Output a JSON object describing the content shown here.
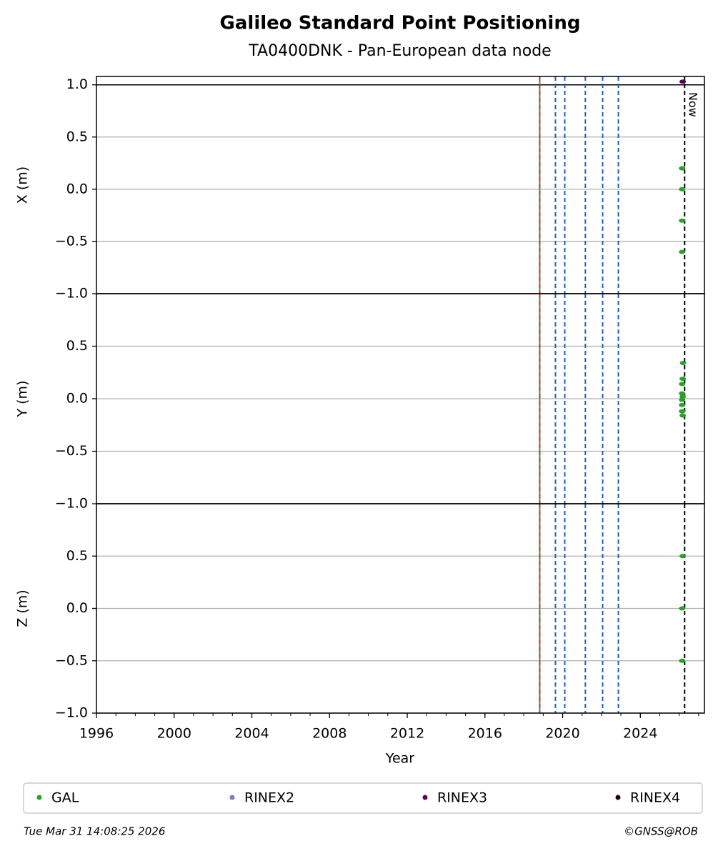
{
  "chart_data": {
    "type": "scatter",
    "title": "Galileo Standard Point Positioning",
    "subtitle": "TA0400DNK - Pan-European data node",
    "xlabel": "Year",
    "xlim": [
      1996,
      2027.3
    ],
    "xticks": [
      1996,
      2000,
      2004,
      2008,
      2012,
      2016,
      2020,
      2024
    ],
    "minor_step": 1,
    "vlines": [
      {
        "x": 2018.82,
        "color": "#2ca02c",
        "dash": false
      },
      {
        "x": 2018.82,
        "color": "#d62728",
        "dash": true
      },
      {
        "x": 2019.63,
        "color": "#1f5fbf",
        "dash": true
      },
      {
        "x": 2020.11,
        "color": "#1f5fbf",
        "dash": true
      },
      {
        "x": 2021.17,
        "color": "#1f5fbf",
        "dash": true
      },
      {
        "x": 2022.06,
        "color": "#1f5fbf",
        "dash": true
      },
      {
        "x": 2022.87,
        "color": "#1f5fbf",
        "dash": true
      }
    ],
    "now": {
      "x": 2026.28,
      "label": "Now",
      "color": "#000000"
    },
    "panels": [
      {
        "ylabel": "X (m)",
        "ylim": [
          -1,
          1.08
        ],
        "hline": 1,
        "yticks": [
          {
            "value": -1,
            "label": "−1.0"
          },
          {
            "value": -0.5,
            "label": "−0.5"
          },
          {
            "value": 0,
            "label": "0.0"
          },
          {
            "value": 0.5,
            "label": "0.5"
          },
          {
            "value": 1,
            "label": "1.0"
          }
        ],
        "series": [
          {
            "name": "GAL",
            "color": "#2ca02c",
            "x": [
              2026.15,
              2026.15,
              2026.15,
              2026.15
            ],
            "values": [
              0.2,
              0,
              -0.3,
              -0.6
            ]
          },
          {
            "name": "RINEX2",
            "color": "#7b7bc4",
            "x": [],
            "values": []
          },
          {
            "name": "RINEX3",
            "color": "#5c005c",
            "x": [
              2026.18
            ],
            "values": [
              1.03
            ]
          },
          {
            "name": "RINEX4",
            "color": "#1a0010",
            "x": [],
            "values": []
          }
        ]
      },
      {
        "ylabel": "Y (m)",
        "ylim": [
          -1,
          1
        ],
        "yticks": [
          {
            "value": -1,
            "label": "−1.0"
          },
          {
            "value": -0.5,
            "label": "−0.5"
          },
          {
            "value": 0,
            "label": "0.0"
          },
          {
            "value": 0.5,
            "label": "0.5"
          }
        ],
        "series": [
          {
            "name": "GAL",
            "color": "#2ca02c",
            "x": [
              2026.2,
              2026.18,
              2026.15,
              2026.15,
              2026.18,
              2026.15,
              2026.15,
              2026.15,
              2026.18
            ],
            "values": [
              0.34,
              0.19,
              0.14,
              0.05,
              0.02,
              -0.01,
              -0.06,
              -0.12,
              -0.16
            ]
          }
        ]
      },
      {
        "ylabel": "Z (m)",
        "ylim": [
          -1,
          1
        ],
        "yticks": [
          {
            "value": -1,
            "label": "−1.0"
          },
          {
            "value": -0.5,
            "label": "−0.5"
          },
          {
            "value": 0,
            "label": "0.0"
          },
          {
            "value": 0.5,
            "label": "0.5"
          }
        ],
        "series": [
          {
            "name": "GAL",
            "color": "#2ca02c",
            "x": [
              2026.18,
              2026.15,
              2026.15
            ],
            "values": [
              0.5,
              0,
              -0.5
            ]
          }
        ]
      }
    ]
  },
  "footer": {
    "date": "Tue Mar 31 14:08:25 2026",
    "credit": "©GNSS@ROB"
  }
}
